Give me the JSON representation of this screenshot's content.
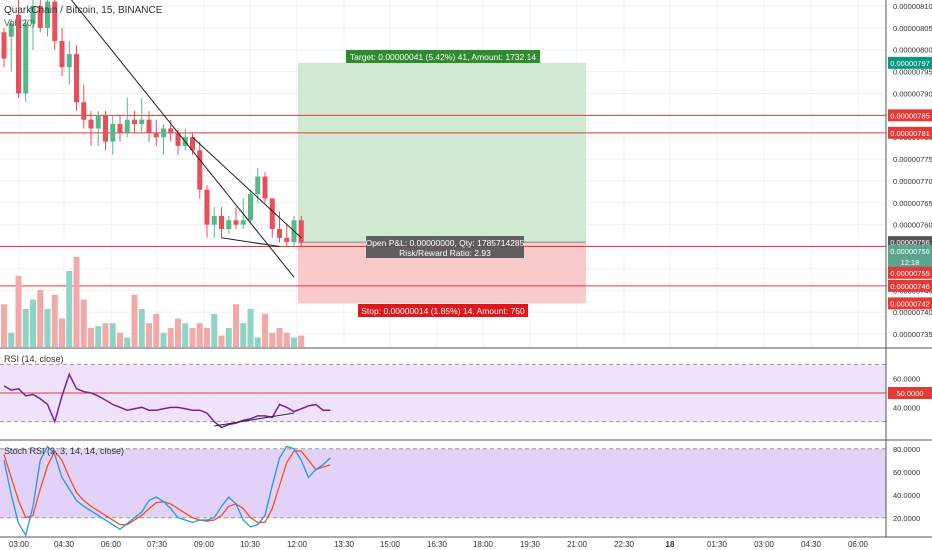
{
  "header": {
    "symbol_line": "QuarkChain / Bitcoin, 15, BINANCE",
    "vol_label": "Vol (20)"
  },
  "price_axis": {
    "ticks": [
      "0.00000810",
      "0.00000805",
      "0.00000800",
      "0.00000795",
      "0.00000790",
      "0.00000785",
      "0.00000780",
      "0.00000775",
      "0.00000770",
      "0.00000765",
      "0.00000760",
      "0.00000755",
      "0.00000750",
      "0.00000745",
      "0.00000740",
      "0.00000735"
    ],
    "tick_values": [
      810,
      805,
      800,
      795,
      790,
      785,
      780,
      775,
      770,
      765,
      760,
      755,
      750,
      745,
      740,
      735
    ],
    "badges": [
      {
        "text": "0.00000797",
        "value": 797,
        "color": "#089981"
      },
      {
        "text": "0.00000785",
        "value": 785,
        "color": "#e53935"
      },
      {
        "text": "0.00000781",
        "value": 781,
        "color": "#e53935"
      },
      {
        "text": "0.00000756",
        "value": 756,
        "color": "#555555"
      },
      {
        "text": "0.00000756",
        "value": 754,
        "color": "#5ba58f"
      },
      {
        "text": "12:18",
        "value": 751.5,
        "color": "#5ba58f"
      },
      {
        "text": "0.00000755",
        "value": 749,
        "color": "#e53935"
      },
      {
        "text": "0.00000746",
        "value": 746,
        "color": "#e53935"
      },
      {
        "text": "0.00000742",
        "value": 742,
        "color": "#e53935"
      }
    ]
  },
  "time_axis": {
    "labels": [
      "03:00",
      "04:30",
      "06:00",
      "07:30",
      "09:00",
      "10:30",
      "12:00",
      "13:30",
      "15:00",
      "16:30",
      "18:00",
      "19:30",
      "21:00",
      "22:30",
      "18",
      "01:30",
      "03:00",
      "04:30",
      "06:00"
    ]
  },
  "position": {
    "target_label": "Target: 0.00000041 (5.42%) 41, Amount: 1732.14",
    "open_pnl_label": "Open P&L: 0.00000000, Qty: 1785714285",
    "risk_reward_label": "Risk/Reward Ratio: 2.93",
    "stop_label": "Stop: 0.00000014 (1.85%) 14, Amount: 750",
    "entry": 756,
    "target": 797,
    "stop": 742,
    "profit_color": "#c8e6c9",
    "loss_color": "#f8c1c1"
  },
  "rsi": {
    "label": "RSI (14, close)",
    "ticks": [
      "60.0000",
      "40.0000"
    ],
    "tick_values": [
      60,
      40
    ],
    "badge": "50.0000",
    "badge_value": 50,
    "band_upper": 70,
    "band_lower": 30,
    "values": [
      55,
      52,
      53,
      48,
      49,
      46,
      42,
      30,
      48,
      63,
      53,
      51,
      50,
      48,
      45,
      42,
      40,
      38,
      39,
      40,
      38,
      38,
      39,
      40,
      40,
      39,
      38,
      38,
      36,
      30,
      26,
      28,
      29,
      31,
      32,
      34,
      34,
      33,
      42,
      40,
      37,
      39,
      41,
      42,
      38,
      38
    ]
  },
  "stoch_rsi": {
    "label": "Stoch RSI (3, 3, 14, 14, close)",
    "ticks": [
      "80.0000",
      "60.0000",
      "40.0000",
      "20.0000"
    ],
    "tick_values": [
      80,
      60,
      40,
      20
    ],
    "band_upper": 80,
    "band_lower": 20,
    "k": [
      70,
      40,
      15,
      5,
      30,
      70,
      82,
      75,
      55,
      45,
      35,
      30,
      26,
      22,
      18,
      14,
      10,
      15,
      20,
      25,
      35,
      38,
      34,
      28,
      20,
      18,
      16,
      18,
      18,
      20,
      30,
      38,
      32,
      18,
      12,
      14,
      22,
      48,
      72,
      82,
      80,
      70,
      55,
      62,
      66,
      72
    ],
    "d": [
      75,
      55,
      35,
      20,
      22,
      45,
      65,
      78,
      70,
      55,
      42,
      35,
      30,
      26,
      22,
      18,
      14,
      14,
      18,
      22,
      28,
      33,
      34,
      32,
      28,
      24,
      20,
      18,
      17,
      18,
      22,
      30,
      32,
      28,
      20,
      16,
      16,
      28,
      48,
      68,
      78,
      78,
      70,
      62,
      64,
      66
    ]
  },
  "chart_data": {
    "type": "candlestick",
    "title": "QuarkChain / Bitcoin, 15, BINANCE",
    "unit_note": "prices in units of 0.00000001 BTC",
    "ylim": [
      733,
      812
    ],
    "candles": [
      {
        "o": 804,
        "h": 805,
        "l": 796,
        "c": 798
      },
      {
        "o": 803,
        "h": 807,
        "l": 795,
        "c": 806
      },
      {
        "o": 808,
        "h": 812,
        "l": 789,
        "c": 790
      },
      {
        "o": 790,
        "h": 807,
        "l": 788,
        "c": 806
      },
      {
        "o": 806,
        "h": 812,
        "l": 800,
        "c": 810
      },
      {
        "o": 810,
        "h": 812,
        "l": 804,
        "c": 805
      },
      {
        "o": 805,
        "h": 812,
        "l": 803,
        "c": 811
      },
      {
        "o": 811,
        "h": 812,
        "l": 800,
        "c": 802
      },
      {
        "o": 802,
        "h": 805,
        "l": 794,
        "c": 796
      },
      {
        "o": 796,
        "h": 802,
        "l": 792,
        "c": 799
      },
      {
        "o": 799,
        "h": 801,
        "l": 786,
        "c": 788
      },
      {
        "o": 788,
        "h": 792,
        "l": 782,
        "c": 784
      },
      {
        "o": 784,
        "h": 786,
        "l": 778,
        "c": 782
      },
      {
        "o": 782,
        "h": 786,
        "l": 778,
        "c": 785
      },
      {
        "o": 785,
        "h": 786,
        "l": 777,
        "c": 779
      },
      {
        "o": 779,
        "h": 785,
        "l": 776,
        "c": 783
      },
      {
        "o": 783,
        "h": 785,
        "l": 779,
        "c": 781
      },
      {
        "o": 781,
        "h": 789,
        "l": 780,
        "c": 784
      },
      {
        "o": 784,
        "h": 786,
        "l": 781,
        "c": 783
      },
      {
        "o": 783,
        "h": 789,
        "l": 781,
        "c": 784
      },
      {
        "o": 784,
        "h": 786,
        "l": 779,
        "c": 781
      },
      {
        "o": 781,
        "h": 784,
        "l": 778,
        "c": 780
      },
      {
        "o": 780,
        "h": 783,
        "l": 776,
        "c": 782
      },
      {
        "o": 782,
        "h": 784,
        "l": 779,
        "c": 781
      },
      {
        "o": 781,
        "h": 782,
        "l": 776,
        "c": 778
      },
      {
        "o": 778,
        "h": 782,
        "l": 777,
        "c": 780
      },
      {
        "o": 780,
        "h": 781,
        "l": 776,
        "c": 777
      },
      {
        "o": 777,
        "h": 779,
        "l": 766,
        "c": 768
      },
      {
        "o": 768,
        "h": 769,
        "l": 757,
        "c": 760
      },
      {
        "o": 760,
        "h": 764,
        "l": 757,
        "c": 762
      },
      {
        "o": 762,
        "h": 764,
        "l": 757,
        "c": 759
      },
      {
        "o": 759,
        "h": 762,
        "l": 758,
        "c": 761
      },
      {
        "o": 761,
        "h": 764,
        "l": 759,
        "c": 760
      },
      {
        "o": 760,
        "h": 766,
        "l": 759,
        "c": 761
      },
      {
        "o": 761,
        "h": 768,
        "l": 760,
        "c": 767
      },
      {
        "o": 767,
        "h": 773,
        "l": 765,
        "c": 771
      },
      {
        "o": 771,
        "h": 772,
        "l": 765,
        "c": 766
      },
      {
        "o": 766,
        "h": 766,
        "l": 757,
        "c": 759
      },
      {
        "o": 759,
        "h": 763,
        "l": 756,
        "c": 757
      },
      {
        "o": 757,
        "h": 760,
        "l": 755,
        "c": 756
      },
      {
        "o": 756,
        "h": 762,
        "l": 755,
        "c": 761
      },
      {
        "o": 761,
        "h": 762,
        "l": 755,
        "c": 756
      }
    ],
    "volume": [
      45,
      15,
      75,
      40,
      50,
      60,
      40,
      55,
      30,
      80,
      95,
      50,
      20,
      22,
      25,
      25,
      15,
      10,
      55,
      40,
      25,
      35,
      15,
      20,
      30,
      25,
      20,
      25,
      20,
      35,
      12,
      20,
      45,
      25,
      40,
      10,
      35,
      15,
      20,
      15,
      10,
      12
    ],
    "horizontal_lines": [
      785,
      781,
      755,
      746
    ],
    "trendlines": [
      {
        "from": [
          9,
          812
        ],
        "to": [
          40,
          748
        ]
      },
      {
        "from": [
          26,
          780
        ],
        "to": [
          41,
          757
        ]
      },
      {
        "from": [
          30,
          757
        ],
        "to": [
          38,
          755
        ]
      }
    ]
  }
}
